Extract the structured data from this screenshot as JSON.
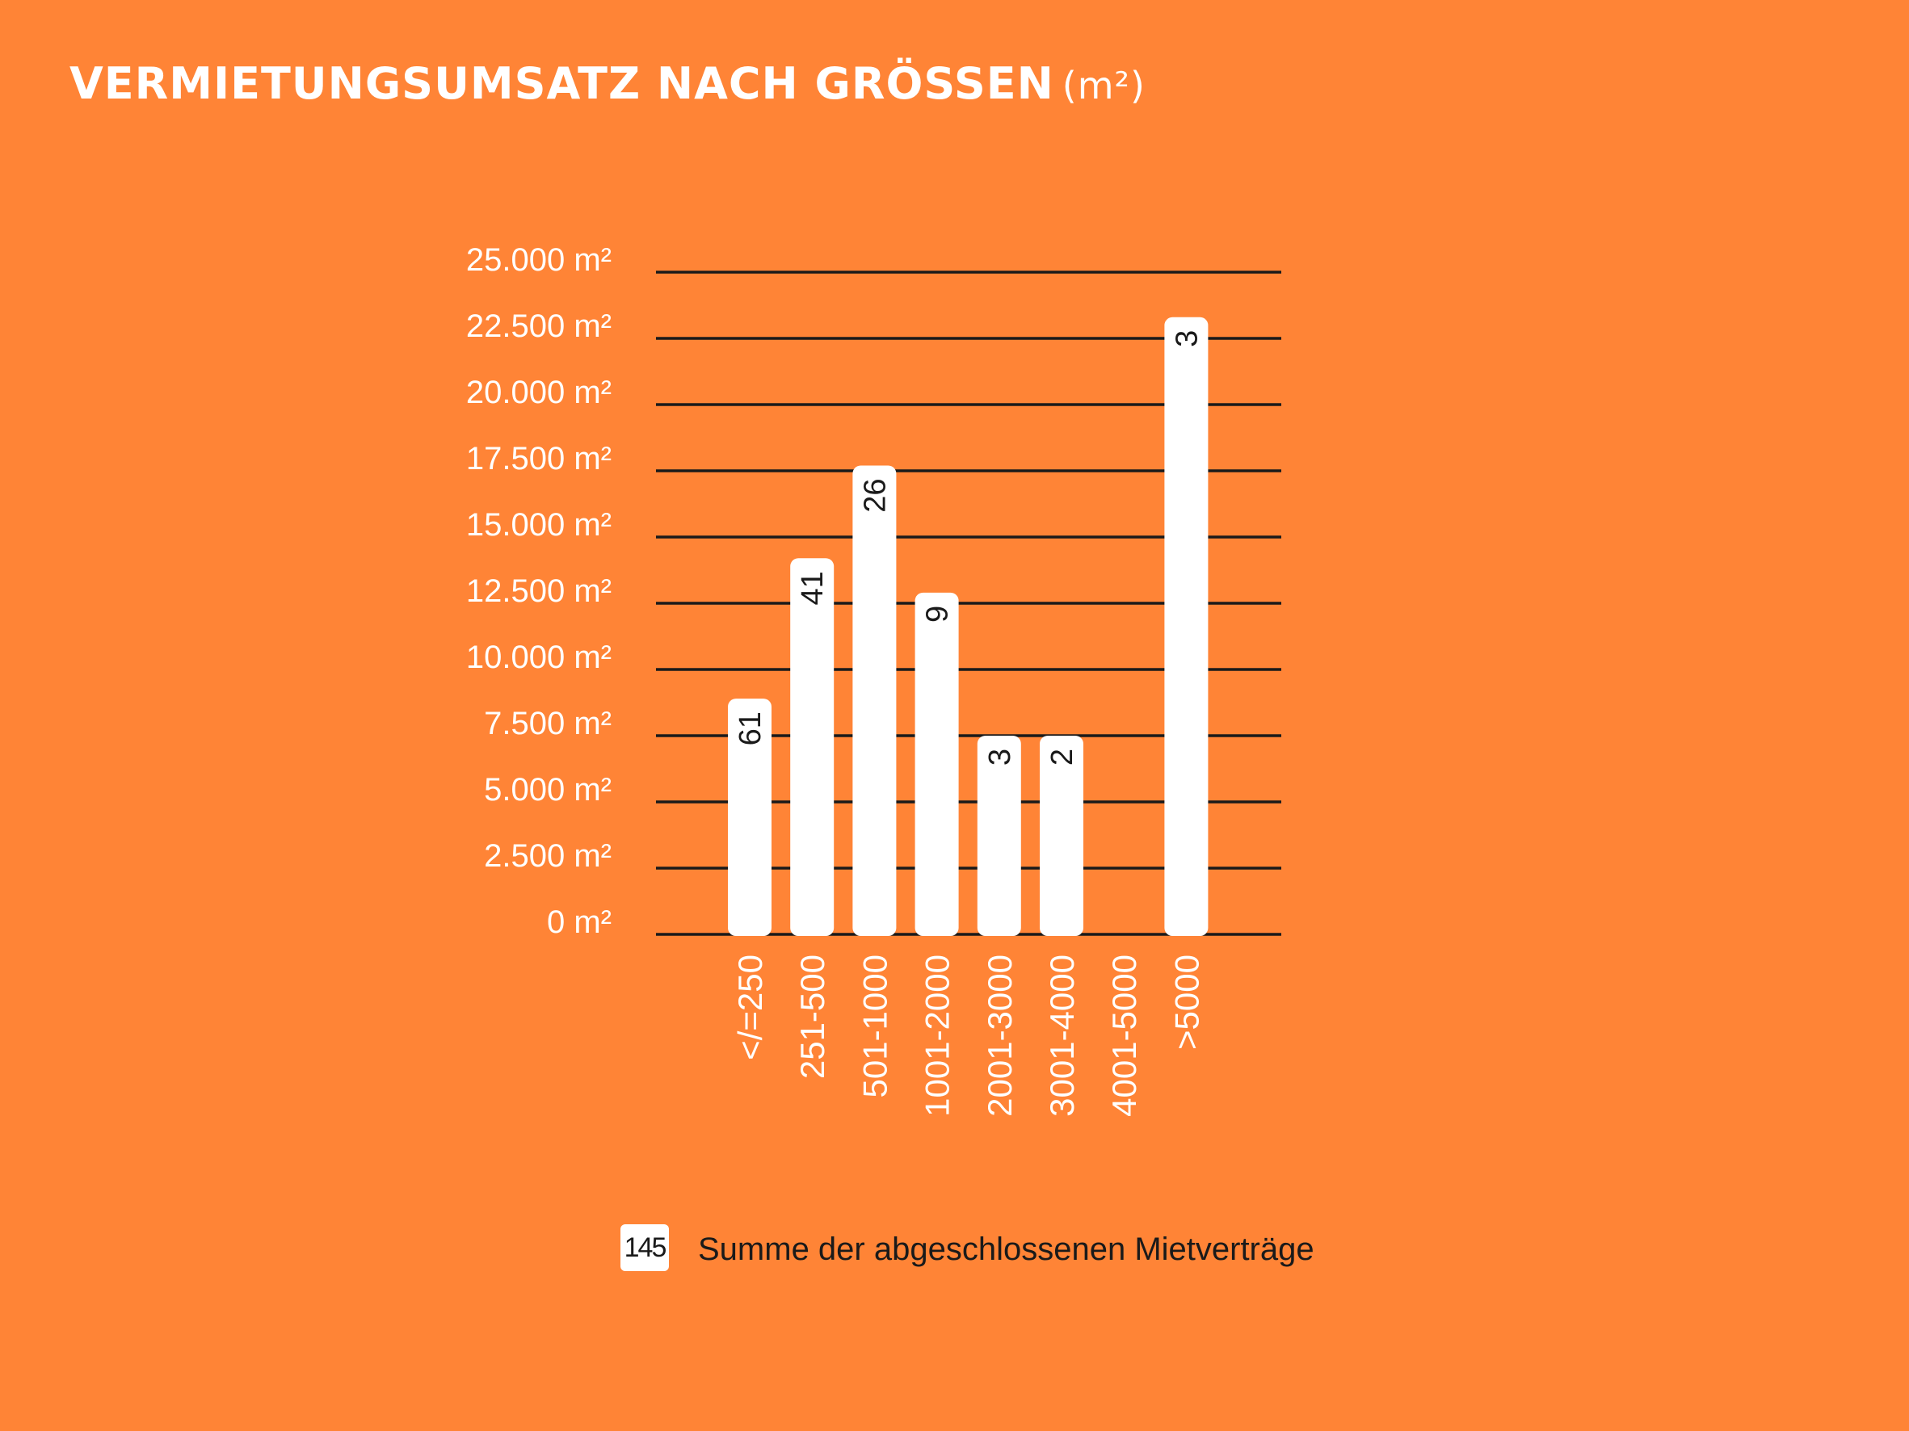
{
  "title": {
    "main": "VERMIETUNGSUMSATZ NACH GRÖSSEN",
    "unit": "(m²)"
  },
  "legend": {
    "box_value": "145",
    "label": "Summe der abgeschlossenen Mietverträge"
  },
  "colors": {
    "background": "#FF8436",
    "bar": "#ffffff",
    "gridline": "#1a1a1a",
    "text_light": "#ffffff",
    "text_dark": "#1a1a1a"
  },
  "chart_data": {
    "type": "bar",
    "title": "VERMIETUNGSUMSATZ NACH GRÖSSEN (m²)",
    "categories": [
      "</=250",
      "251-500",
      "501-1000",
      "1001-2000",
      "2001-3000",
      "3001-4000",
      "4001-5000",
      ">5000"
    ],
    "values": [
      8900,
      14200,
      17700,
      12900,
      7500,
      7500,
      0,
      23300
    ],
    "bar_labels": [
      "61",
      "41",
      "26",
      "9",
      "3",
      "2",
      "",
      "3"
    ],
    "ylim": [
      0,
      25000
    ],
    "yticks": [
      0,
      2500,
      5000,
      7500,
      10000,
      12500,
      15000,
      17500,
      20000,
      22500,
      25000
    ],
    "ytick_labels": [
      "0 m²",
      "2.500 m²",
      "5.000 m²",
      "7.500 m²",
      "10.000 m²",
      "12.500 m²",
      "15.000 m²",
      "17.500 m²",
      "20.000 m²",
      "22.500 m²",
      "25.000 m²"
    ],
    "grid": true,
    "legend_position": "bottom"
  }
}
